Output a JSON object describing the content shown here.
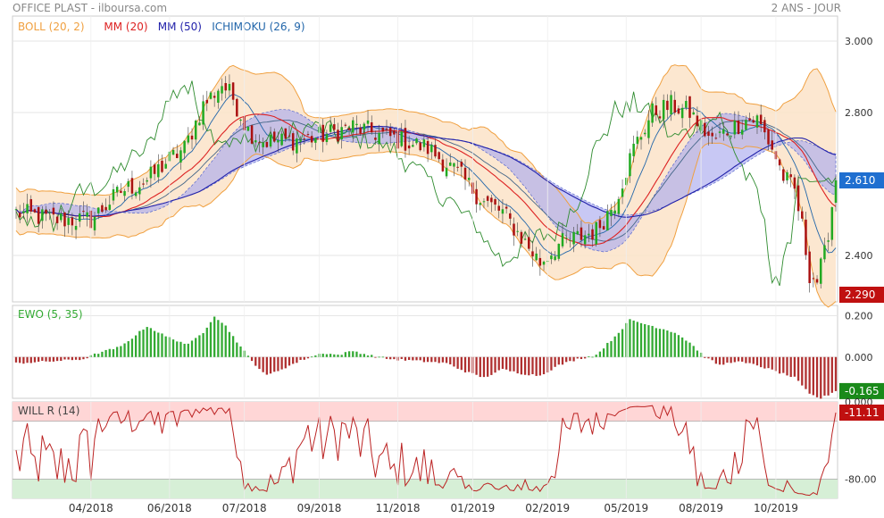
{
  "header": {
    "title": "OFFICE PLAST - ilboursa.com",
    "range": "2 ANS - JOUR"
  },
  "colors": {
    "boll": "#f0a040",
    "boll_fill": "#fbe3c8",
    "mm20": "#dd2222",
    "mm50": "#2222aa",
    "ichimoku_line": "#2266aa",
    "cloud_fill": "#aaaaee",
    "candle_up": "#22aa22",
    "candle_down": "#aa1111",
    "ewo_pos": "#33aa33",
    "ewo_neg": "#b03030",
    "willr_line": "#bb2222",
    "zone_top": "#ffd6d6",
    "zone_bottom": "#d6efd6",
    "badge_blue": "#1f6fd0",
    "badge_red": "#c01010",
    "badge_green": "#1a8a1a"
  },
  "chart_data": [
    {
      "type": "candlestick",
      "legend": [
        {
          "label": "BOLL (20, 2)",
          "color_key": "boll"
        },
        {
          "label": "MM (20)",
          "color_key": "mm20"
        },
        {
          "label": "MM (50)",
          "color_key": "mm50"
        },
        {
          "label": "ICHIMOKU (26, 9)",
          "color_key": "ichimoku_line"
        }
      ],
      "ylim": [
        2.27,
        3.07
      ],
      "yticks": [
        {
          "value": 3.0,
          "label": "3.000"
        },
        {
          "value": 2.8,
          "label": "2.800"
        },
        {
          "value": 2.4,
          "label": "2.400"
        }
      ],
      "last_price": {
        "value": 2.61,
        "label": "2.610"
      },
      "low_marker": {
        "value": 2.29,
        "label": "2.290"
      },
      "n_points": 220,
      "anchors": [
        [
          0,
          2.52
        ],
        [
          10,
          2.5
        ],
        [
          20,
          2.5
        ],
        [
          28,
          2.58
        ],
        [
          35,
          2.61
        ],
        [
          40,
          2.66
        ],
        [
          45,
          2.7
        ],
        [
          50,
          2.82
        ],
        [
          55,
          2.88
        ],
        [
          58,
          2.84
        ],
        [
          62,
          2.75
        ],
        [
          66,
          2.72
        ],
        [
          72,
          2.72
        ],
        [
          80,
          2.73
        ],
        [
          90,
          2.76
        ],
        [
          100,
          2.73
        ],
        [
          110,
          2.7
        ],
        [
          118,
          2.63
        ],
        [
          125,
          2.55
        ],
        [
          130,
          2.52
        ],
        [
          135,
          2.45
        ],
        [
          140,
          2.38
        ],
        [
          145,
          2.43
        ],
        [
          150,
          2.45
        ],
        [
          155,
          2.47
        ],
        [
          160,
          2.55
        ],
        [
          165,
          2.7
        ],
        [
          170,
          2.8
        ],
        [
          175,
          2.82
        ],
        [
          180,
          2.8
        ],
        [
          186,
          2.72
        ],
        [
          190,
          2.75
        ],
        [
          195,
          2.78
        ],
        [
          198,
          2.78
        ],
        [
          202,
          2.7
        ],
        [
          205,
          2.62
        ],
        [
          208,
          2.58
        ],
        [
          210,
          2.48
        ],
        [
          212,
          2.35
        ],
        [
          214,
          2.33
        ],
        [
          216,
          2.4
        ],
        [
          219,
          2.61
        ]
      ]
    },
    {
      "type": "bar",
      "label": "EWO (5, 35)",
      "ylim": [
        -0.2,
        0.25
      ],
      "yticks": [
        {
          "value": 0.2,
          "label": "0.200"
        },
        {
          "value": 0.0,
          "label": "0.000"
        }
      ],
      "last_value": {
        "value": -0.165,
        "label": "-0.165"
      },
      "anchors": [
        [
          0,
          -0.03
        ],
        [
          10,
          -0.02
        ],
        [
          18,
          -0.01
        ],
        [
          22,
          0.02
        ],
        [
          28,
          0.05
        ],
        [
          35,
          0.15
        ],
        [
          40,
          0.1
        ],
        [
          46,
          0.06
        ],
        [
          50,
          0.12
        ],
        [
          53,
          0.2
        ],
        [
          56,
          0.15
        ],
        [
          60,
          0.05
        ],
        [
          63,
          -0.02
        ],
        [
          67,
          -0.09
        ],
        [
          72,
          -0.05
        ],
        [
          77,
          -0.01
        ],
        [
          82,
          0.02
        ],
        [
          86,
          0.01
        ],
        [
          90,
          0.03
        ],
        [
          94,
          0.01
        ],
        [
          100,
          -0.01
        ],
        [
          108,
          -0.02
        ],
        [
          115,
          -0.03
        ],
        [
          120,
          -0.07
        ],
        [
          125,
          -0.1
        ],
        [
          130,
          -0.06
        ],
        [
          135,
          -0.08
        ],
        [
          140,
          -0.09
        ],
        [
          145,
          -0.04
        ],
        [
          150,
          -0.01
        ],
        [
          155,
          0.01
        ],
        [
          160,
          0.1
        ],
        [
          164,
          0.18
        ],
        [
          170,
          0.15
        ],
        [
          176,
          0.12
        ],
        [
          180,
          0.07
        ],
        [
          184,
          0.0
        ],
        [
          188,
          -0.04
        ],
        [
          192,
          -0.02
        ],
        [
          198,
          -0.04
        ],
        [
          203,
          -0.07
        ],
        [
          208,
          -0.1
        ],
        [
          212,
          -0.18
        ],
        [
          215,
          -0.2
        ],
        [
          219,
          -0.165
        ]
      ]
    },
    {
      "type": "line",
      "label": "WILL R (14)",
      "ylim": [
        -100,
        0
      ],
      "yticks": [
        {
          "value": 0,
          "label": "0.000"
        },
        {
          "value": -80,
          "label": "-80.00"
        }
      ],
      "bands": [
        -20,
        -80
      ],
      "last_value": {
        "value": -11.11,
        "label": "-11.11"
      },
      "n_points": 220
    }
  ],
  "x_axis": [
    {
      "label": "04/2018",
      "index": 20
    },
    {
      "label": "06/2018",
      "index": 41
    },
    {
      "label": "07/2018",
      "index": 61
    },
    {
      "label": "09/2018",
      "index": 81
    },
    {
      "label": "11/2018",
      "index": 102
    },
    {
      "label": "01/2019",
      "index": 122
    },
    {
      "label": "02/2019",
      "index": 142
    },
    {
      "label": "05/2019",
      "index": 163
    },
    {
      "label": "08/2019",
      "index": 183
    },
    {
      "label": "10/2019",
      "index": 203
    }
  ]
}
